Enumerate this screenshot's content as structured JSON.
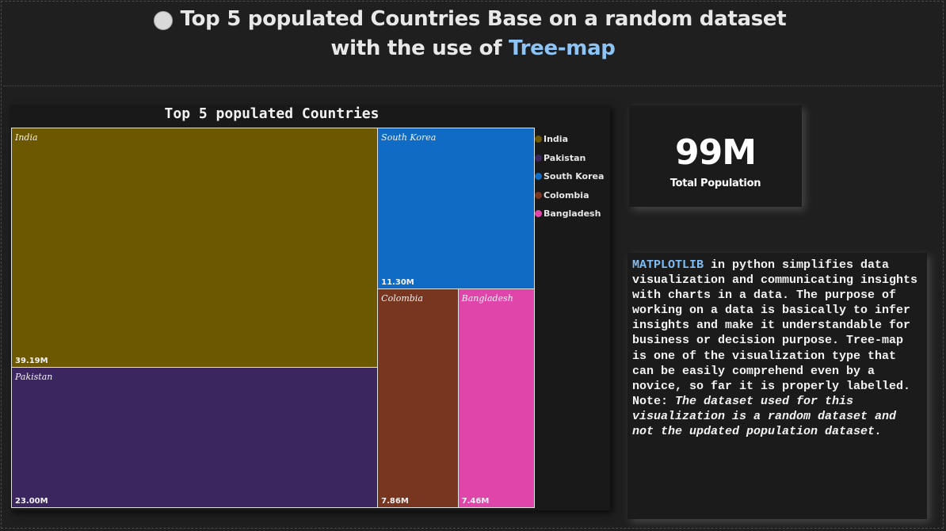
{
  "header": {
    "line1": "Top 5 populated Countries Base on a random dataset",
    "line2_prefix": "with the use of ",
    "line2_accent": "Tree-map",
    "icon": "circle-icon",
    "accent_color": "#8ec3f5"
  },
  "chart_data": {
    "type": "treemap",
    "title": "Top 5 populated Countries",
    "unit": "M",
    "items": [
      {
        "name": "India",
        "value": 39.19,
        "label": "39.19M",
        "color": "#6b5800"
      },
      {
        "name": "Pakistan",
        "value": 23.0,
        "label": "23.00M",
        "color": "#3b2660"
      },
      {
        "name": "South Korea",
        "value": 11.3,
        "label": "11.30M",
        "color": "#0f6bc4"
      },
      {
        "name": "Colombia",
        "value": 7.86,
        "label": "7.86M",
        "color": "#78351f"
      },
      {
        "name": "Bangladesh",
        "value": 7.46,
        "label": "7.46M",
        "color": "#e046a9"
      }
    ],
    "legend": {
      "position": "right",
      "entries": [
        "India",
        "Pakistan",
        "South Korea",
        "Colombia",
        "Bangladesh"
      ]
    }
  },
  "kpi": {
    "value": "99M",
    "label": "Total Population"
  },
  "description": {
    "highlight": "MATPLOTLIB",
    "body": " in python simplifies data visualization and communicating insights with charts in a data. The purpose of working on a data is basically to infer insights and make it understandable for business or decision purpose. Tree-map is one of the visualization type that can be easily comprehend even by a novice, so far it is properly labelled.",
    "note_label": "Note: ",
    "note_text": "The dataset used for this visualization is a random dataset and not the updated population dataset.",
    "highlight_color": "#7fbdf5"
  }
}
